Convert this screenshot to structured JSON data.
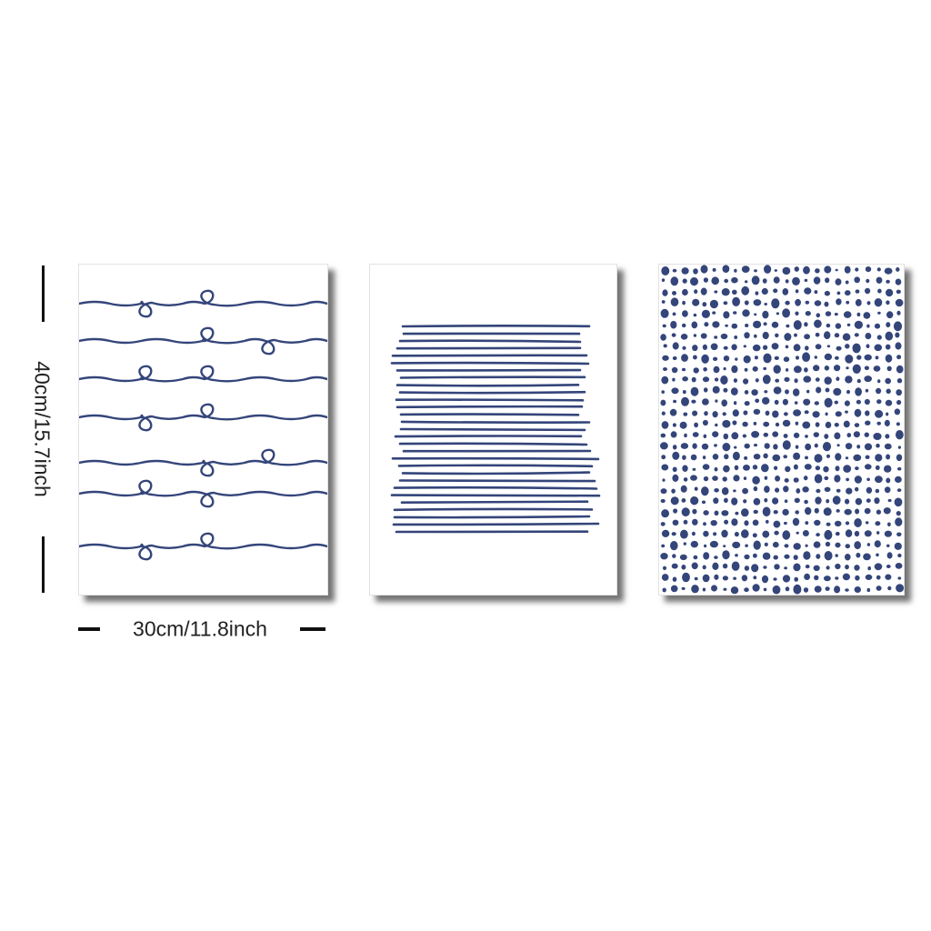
{
  "dimensions": {
    "height_label": "40cm/15.7inch",
    "width_label": "30cm/11.8inch"
  },
  "panels": [
    {
      "name": "curly-lines-print",
      "pattern": "wavy lines with loops"
    },
    {
      "name": "striped-lines-print",
      "pattern": "horizontal stripes"
    },
    {
      "name": "dotted-print",
      "pattern": "dot grid"
    }
  ],
  "colors": {
    "ink": "#34457a",
    "background": "#ffffff",
    "dimension_text": "#222222"
  }
}
